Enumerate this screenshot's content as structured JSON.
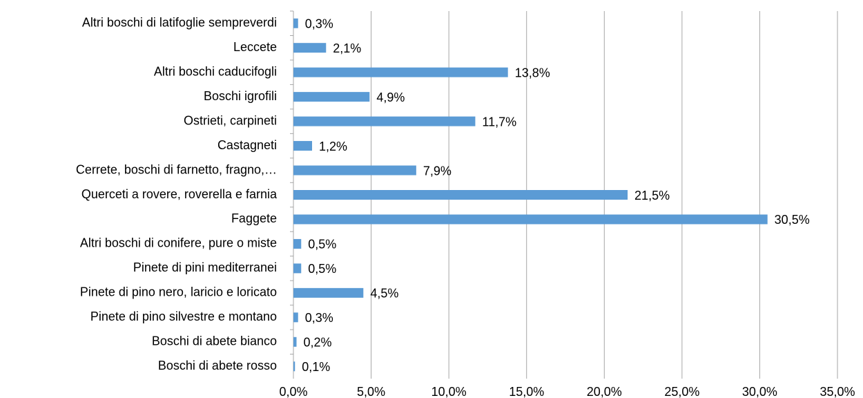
{
  "chart_data": {
    "type": "bar",
    "orientation": "horizontal",
    "categories": [
      "Altri boschi di latifoglie sempreverdi",
      "Leccete",
      "Altri boschi caducifogli",
      "Boschi igrofili",
      "Ostrieti, carpineti",
      "Castagneti",
      "Cerrete, boschi di farnetto, fragno,…",
      "Querceti a rovere, roverella e farnia",
      "Faggete",
      "Altri boschi di conifere, pure o miste",
      "Pinete di pini mediterranei",
      "Pinete di pino nero, laricio e loricato",
      "Pinete di pino silvestre e montano",
      "Boschi di abete bianco",
      "Boschi di abete rosso"
    ],
    "values": [
      0.3,
      2.1,
      13.8,
      4.9,
      11.7,
      1.2,
      7.9,
      21.5,
      30.5,
      0.5,
      0.5,
      4.5,
      0.3,
      0.2,
      0.1
    ],
    "value_labels": [
      "0,3%",
      "2,1%",
      "13,8%",
      "4,9%",
      "11,7%",
      "1,2%",
      "7,9%",
      "21,5%",
      "30,5%",
      "0,5%",
      "0,5%",
      "4,5%",
      "0,3%",
      "0,2%",
      "0,1%"
    ],
    "color": "#5b9bd5",
    "xlim": [
      0,
      35
    ],
    "xticks": [
      {
        "value": 0,
        "label": "0,0%"
      },
      {
        "value": 5,
        "label": "5,0%"
      },
      {
        "value": 10,
        "label": "10,0%"
      },
      {
        "value": 15,
        "label": "15,0%"
      },
      {
        "value": 20,
        "label": "20,0%"
      },
      {
        "value": 25,
        "label": "25,0%"
      },
      {
        "value": 30,
        "label": "30,0%"
      },
      {
        "value": 35,
        "label": "35,0%"
      }
    ],
    "grid": true
  }
}
